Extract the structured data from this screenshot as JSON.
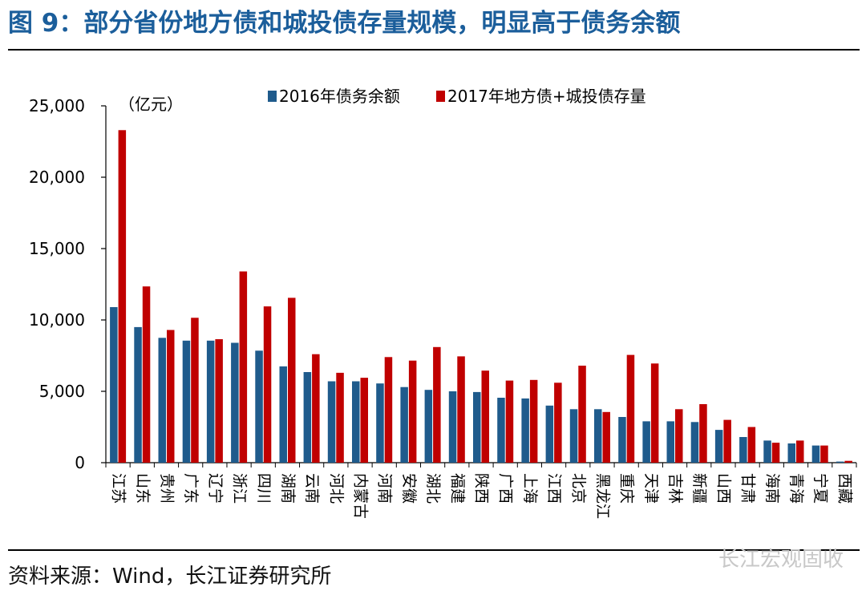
{
  "title": "图 9：部分省份地方债和城投债存量规模，明显高于债务余额",
  "source": "资料来源：Wind，长江证券研究所",
  "watermark": "长江宏观固收",
  "colors": {
    "title": "#1b5e9b",
    "series_2016": "#1f5b8c",
    "series_2017": "#c00000"
  },
  "chart_data": {
    "type": "bar",
    "unit_label": "（亿元）",
    "ylim": [
      0,
      25000
    ],
    "yticks": [
      0,
      5000,
      10000,
      15000,
      20000,
      25000
    ],
    "ytick_labels": [
      "0",
      "5,000",
      "10,000",
      "15,000",
      "20,000",
      "25,000"
    ],
    "grid": false,
    "legend_position": "top",
    "categories": [
      "江苏",
      "山东",
      "贵州",
      "广东",
      "辽宁",
      "浙江",
      "四川",
      "湖南",
      "云南",
      "河北",
      "内蒙古",
      "河南",
      "安徽",
      "湖北",
      "福建",
      "陕西",
      "广西",
      "上海",
      "江西",
      "北京",
      "黑龙江",
      "重庆",
      "天津",
      "吉林",
      "新疆",
      "山西",
      "甘肃",
      "海南",
      "青海",
      "宁夏",
      "西藏"
    ],
    "series": [
      {
        "name": "2016年债务余额",
        "values": [
          10900,
          9500,
          8750,
          8550,
          8550,
          8400,
          7850,
          6750,
          6350,
          5700,
          5700,
          5550,
          5300,
          5100,
          5000,
          4950,
          4550,
          4500,
          4000,
          3750,
          3750,
          3200,
          2900,
          2900,
          2850,
          2300,
          1800,
          1550,
          1350,
          1200,
          80
        ]
      },
      {
        "name": "2017年地方债+城投债存量",
        "values": [
          23300,
          12350,
          9300,
          10150,
          8650,
          13400,
          10950,
          11550,
          7600,
          6300,
          5950,
          7400,
          7150,
          8100,
          7450,
          6450,
          5750,
          5800,
          5600,
          6800,
          3550,
          7550,
          6950,
          3750,
          4100,
          3000,
          2500,
          1400,
          1550,
          1200,
          130
        ]
      }
    ]
  }
}
